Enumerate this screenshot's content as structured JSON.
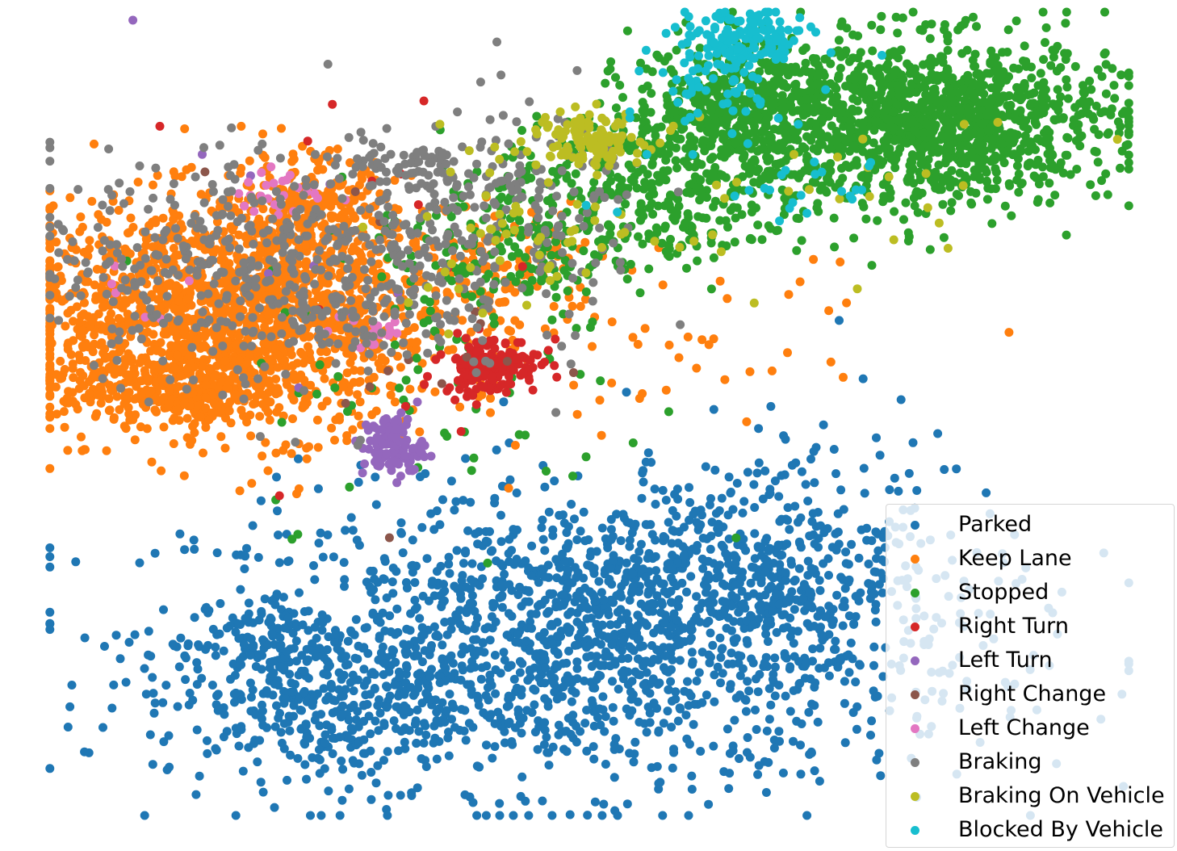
{
  "chart_data": {
    "type": "scatter",
    "title": "",
    "xlabel": "",
    "ylabel": "",
    "axes_visible": false,
    "grid": false,
    "xlim": [
      0,
      100
    ],
    "ylim": [
      0,
      100
    ],
    "legend_position": "bottom-right",
    "series": [
      {
        "name": "Parked",
        "color": "#1f77b4",
        "clusters": [
          {
            "cx": 50,
            "cy": 22,
            "sx": 18,
            "sy": 9,
            "n": 1500
          },
          {
            "cx": 62,
            "cy": 30,
            "sx": 8,
            "sy": 6,
            "n": 350
          },
          {
            "cx": 26,
            "cy": 15,
            "sx": 8,
            "sy": 5,
            "n": 350
          },
          {
            "cx": 20,
            "cy": 22,
            "sx": 3,
            "sy": 3,
            "n": 80
          },
          {
            "cx": 70,
            "cy": 40,
            "sx": 8,
            "sy": 6,
            "n": 60
          }
        ]
      },
      {
        "name": "Keep Lane",
        "color": "#ff7f0e",
        "clusters": [
          {
            "cx": 17,
            "cy": 62,
            "sx": 10,
            "sy": 7,
            "n": 1700
          },
          {
            "cx": 24,
            "cy": 74,
            "sx": 4,
            "sy": 4,
            "n": 280
          },
          {
            "cx": 13,
            "cy": 53,
            "sx": 5,
            "sy": 2,
            "n": 260
          },
          {
            "cx": 43,
            "cy": 68,
            "sx": 4,
            "sy": 4,
            "n": 110
          },
          {
            "cx": 60,
            "cy": 58,
            "sx": 8,
            "sy": 6,
            "n": 40
          }
        ]
      },
      {
        "name": "Stopped",
        "color": "#2ca02c",
        "clusters": [
          {
            "cx": 82,
            "cy": 86,
            "sx": 8,
            "sy": 5,
            "n": 1200
          },
          {
            "cx": 64,
            "cy": 88,
            "sx": 5,
            "sy": 4,
            "n": 500
          },
          {
            "cx": 57,
            "cy": 77,
            "sx": 8,
            "sy": 5,
            "n": 400
          },
          {
            "cx": 42,
            "cy": 70,
            "sx": 6,
            "sy": 5,
            "n": 150
          },
          {
            "cx": 38,
            "cy": 52,
            "sx": 9,
            "sy": 8,
            "n": 60
          }
        ]
      },
      {
        "name": "Right Turn",
        "color": "#d62728",
        "clusters": [
          {
            "cx": 41,
            "cy": 56,
            "sx": 2.2,
            "sy": 1.8,
            "n": 170
          },
          {
            "cx": 30,
            "cy": 70,
            "sx": 8,
            "sy": 10,
            "n": 15
          }
        ]
      },
      {
        "name": "Left Turn",
        "color": "#9467bd",
        "clusters": [
          {
            "cx": 32,
            "cy": 46,
            "sx": 1.4,
            "sy": 2,
            "n": 110
          },
          {
            "cx": 20,
            "cy": 70,
            "sx": 6,
            "sy": 8,
            "n": 10
          }
        ]
      },
      {
        "name": "Right Change",
        "color": "#8c564b",
        "clusters": [
          {
            "cx": 30,
            "cy": 60,
            "sx": 10,
            "sy": 10,
            "n": 14
          }
        ]
      },
      {
        "name": "Left Change",
        "color": "#e377c2",
        "clusters": [
          {
            "cx": 22,
            "cy": 77,
            "sx": 2,
            "sy": 1.5,
            "n": 25
          },
          {
            "cx": 30,
            "cy": 60,
            "sx": 2,
            "sy": 1.5,
            "n": 18
          },
          {
            "cx": 8,
            "cy": 65,
            "sx": 3,
            "sy": 3,
            "n": 6
          }
        ]
      },
      {
        "name": "Braking",
        "color": "#7f7f7f",
        "clusters": [
          {
            "cx": 22,
            "cy": 68,
            "sx": 11,
            "sy": 7,
            "n": 550
          },
          {
            "cx": 44,
            "cy": 76,
            "sx": 6,
            "sy": 6,
            "n": 150
          },
          {
            "cx": 33,
            "cy": 80,
            "sx": 4,
            "sy": 2,
            "n": 60
          }
        ]
      },
      {
        "name": "Braking On Vehicle",
        "color": "#bcbd22",
        "clusters": [
          {
            "cx": 50,
            "cy": 84,
            "sx": 2.5,
            "sy": 1.5,
            "n": 110
          },
          {
            "cx": 46,
            "cy": 74,
            "sx": 6,
            "sy": 6,
            "n": 70
          },
          {
            "cx": 75,
            "cy": 77,
            "sx": 10,
            "sy": 5,
            "n": 25
          }
        ]
      },
      {
        "name": "Blocked By Vehicle",
        "color": "#17becf",
        "clusters": [
          {
            "cx": 64,
            "cy": 96,
            "sx": 3,
            "sy": 2,
            "n": 160
          },
          {
            "cx": 62,
            "cy": 90,
            "sx": 3,
            "sy": 3,
            "n": 50
          },
          {
            "cx": 65,
            "cy": 78,
            "sx": 8,
            "sy": 4,
            "n": 25
          }
        ]
      }
    ]
  }
}
